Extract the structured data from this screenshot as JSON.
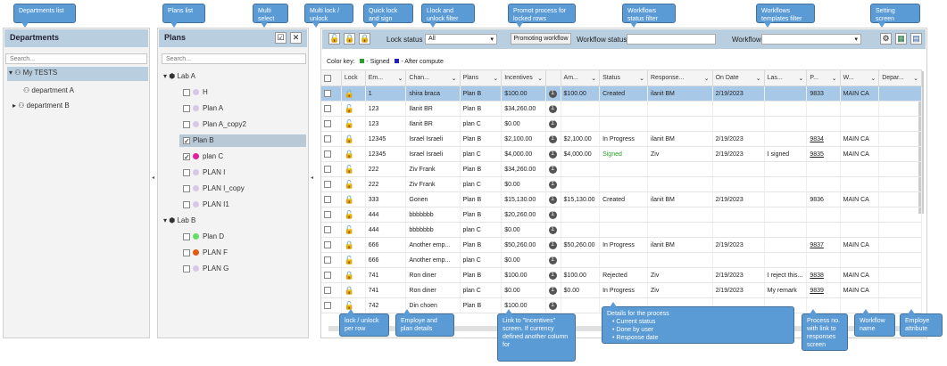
{
  "callouts": {
    "departments_list": "Departments list",
    "plans_list": "Plans list",
    "multi_select": "Multi select",
    "multi_lock": "Multi lock / unlock",
    "quick_lock": "Quick lock and sign",
    "lock_filter": "Llock and unlock filter",
    "promot": "Promot process for locked rows",
    "wf_status_filter": "Workflows status filter",
    "wf_templates_filter": "Workflows templates filter",
    "setting_screen": "Setting screen",
    "lock_per_row": "lock / unlock per row",
    "employee_plan": "Employe and plan details",
    "incentives_link": "Link to \"Incentives\" screen. If currency defined another column for",
    "details_title": "Details for the process",
    "details_items": [
      "Current status",
      "Done by user",
      "Response date"
    ],
    "process_no": "Process no. with link to responses screen",
    "workflow_name": "Workflow name",
    "employee_attr": "Employe attribute"
  },
  "departments": {
    "title": "Departments",
    "search_placeholder": "Search...",
    "items": [
      "My TESTS",
      "department A",
      "department B"
    ]
  },
  "plans": {
    "title": "Plans",
    "search_placeholder": "Search...",
    "labs": [
      "Lab A",
      "Lab B"
    ],
    "lab_a": [
      {
        "name": "H",
        "checked": false,
        "color": "#d8c8e8"
      },
      {
        "name": "Plan A",
        "checked": false,
        "color": "#d8c8e8"
      },
      {
        "name": "Plan A_copy2",
        "checked": false,
        "color": "#d8c8e8"
      },
      {
        "name": "Plan B",
        "checked": true,
        "color": ""
      },
      {
        "name": "plan C",
        "checked": true,
        "color": "#e020a0"
      },
      {
        "name": "PLAN I",
        "checked": false,
        "color": "#d8c8e8"
      },
      {
        "name": "PLAN I_copy",
        "checked": false,
        "color": "#d8c8e8"
      },
      {
        "name": "PLAN I1",
        "checked": false,
        "color": "#d8c8e8"
      }
    ],
    "lab_b": [
      {
        "name": "Plan D",
        "checked": false,
        "color": "#66dd66"
      },
      {
        "name": "PLAN F",
        "checked": false,
        "color": "#e05a10"
      },
      {
        "name": "PLAN G",
        "checked": false,
        "color": "#d8c8e8"
      }
    ]
  },
  "toolbar": {
    "lock_status_label": "Lock status",
    "lock_status_value": "All",
    "promoting_button": "Promoting workflow",
    "wf_status_label": "Workflow status",
    "workflow_label": "Workflow"
  },
  "color_key": {
    "label": "Color key:",
    "signed": "- Signed",
    "after": "- After compute"
  },
  "columns": [
    "Lock",
    "Em...",
    "Chan...",
    "Plans",
    "Incentives",
    "",
    "Am...",
    "Status",
    "Response...",
    "On Date",
    "Las...",
    "P...",
    "W...",
    "Depar..."
  ],
  "rows": [
    {
      "lock": "red",
      "em": "1",
      "chan": "shira braca",
      "plan": "Plan B",
      "inc": "$100.00",
      "am": "$100.00",
      "status": "Created",
      "resp": "ilanit BM",
      "date": "2/19/2023",
      "last": "",
      "p": "9833",
      "w": "MAIN CA",
      "sel": true
    },
    {
      "lock": "green",
      "em": "123",
      "chan": "Ilanit BR",
      "plan": "Plan B",
      "inc": "$34,260.00",
      "am": "",
      "status": "",
      "resp": "",
      "date": "",
      "last": "",
      "p": "",
      "w": ""
    },
    {
      "lock": "green",
      "em": "123",
      "chan": "Ilanit BR",
      "plan": "plan C",
      "inc": "$0.00",
      "am": "",
      "status": "",
      "resp": "",
      "date": "",
      "last": "",
      "p": "",
      "w": ""
    },
    {
      "lock": "red",
      "em": "12345",
      "chan": "Israel Israeli",
      "plan": "Plan B",
      "inc": "$2,100.00",
      "am": "$2,100.00",
      "status": "In Progress",
      "resp": "ilanit BM",
      "date": "2/19/2023",
      "last": "",
      "p": "9834",
      "w": "MAIN CA",
      "link": true
    },
    {
      "lock": "red",
      "em": "12345",
      "chan": "Israel Israeli",
      "plan": "plan C",
      "inc": "$4,000.00",
      "am": "$4,000.00",
      "status": "Signed",
      "resp": "Ziv",
      "date": "2/19/2023",
      "last": "I signed",
      "p": "9835",
      "w": "MAIN CA",
      "link": true,
      "signed": true
    },
    {
      "lock": "green",
      "em": "222",
      "chan": "Ziv Frank",
      "plan": "Plan B",
      "inc": "$34,260.00",
      "am": "",
      "status": "",
      "resp": "",
      "date": "",
      "last": "",
      "p": "",
      "w": ""
    },
    {
      "lock": "green",
      "em": "222",
      "chan": "Ziv Frank",
      "plan": "plan C",
      "inc": "$0.00",
      "am": "",
      "status": "",
      "resp": "",
      "date": "",
      "last": "",
      "p": "",
      "w": ""
    },
    {
      "lock": "red",
      "em": "333",
      "chan": "Gonen",
      "plan": "Plan B",
      "inc": "$15,130.00",
      "am": "$15,130.00",
      "status": "Created",
      "resp": "ilanit BM",
      "date": "2/19/2023",
      "last": "",
      "p": "9836",
      "w": "MAIN CA"
    },
    {
      "lock": "green",
      "em": "444",
      "chan": "bbbbbbb",
      "plan": "Plan B",
      "inc": "$20,260.00",
      "am": "",
      "status": "",
      "resp": "",
      "date": "",
      "last": "",
      "p": "",
      "w": ""
    },
    {
      "lock": "green",
      "em": "444",
      "chan": "bbbbbbb",
      "plan": "plan C",
      "inc": "$0.00",
      "am": "",
      "status": "",
      "resp": "",
      "date": "",
      "last": "",
      "p": "",
      "w": ""
    },
    {
      "lock": "red",
      "em": "666",
      "chan": "Another emp...",
      "plan": "Plan B",
      "inc": "$50,260.00",
      "am": "$50,260.00",
      "status": "In Progress",
      "resp": "ilanit BM",
      "date": "2/19/2023",
      "last": "",
      "p": "9837",
      "w": "MAIN CA",
      "link": true
    },
    {
      "lock": "green",
      "em": "666",
      "chan": "Another emp...",
      "plan": "plan C",
      "inc": "$0.00",
      "am": "",
      "status": "",
      "resp": "",
      "date": "",
      "last": "",
      "p": "",
      "w": ""
    },
    {
      "lock": "red",
      "em": "741",
      "chan": "Ron diner",
      "plan": "Plan B",
      "inc": "$100.00",
      "am": "$100.00",
      "status": "Rejected",
      "resp": "Ziv",
      "date": "2/19/2023",
      "last": "I reject this...",
      "p": "9838",
      "w": "MAIN CA",
      "link": true
    },
    {
      "lock": "red",
      "em": "741",
      "chan": "Ron diner",
      "plan": "plan C",
      "inc": "$0.00",
      "am": "$0.00",
      "status": "In Progress",
      "resp": "Ziv",
      "date": "2/19/2023",
      "last": "My remark",
      "p": "9839",
      "w": "MAIN CA",
      "link": true
    },
    {
      "lock": "green",
      "em": "742",
      "chan": "Din choen",
      "plan": "Plan B",
      "inc": "$100.00",
      "am": "",
      "status": "",
      "resp": "",
      "date": "",
      "last": "",
      "p": "",
      "w": ""
    }
  ],
  "colors": {
    "accent": "#5b9bd5",
    "header": "#b9cfe0",
    "selected_row": "#a8c8e8",
    "signed_key": "#2aa02a",
    "after_key": "#2020c0"
  }
}
